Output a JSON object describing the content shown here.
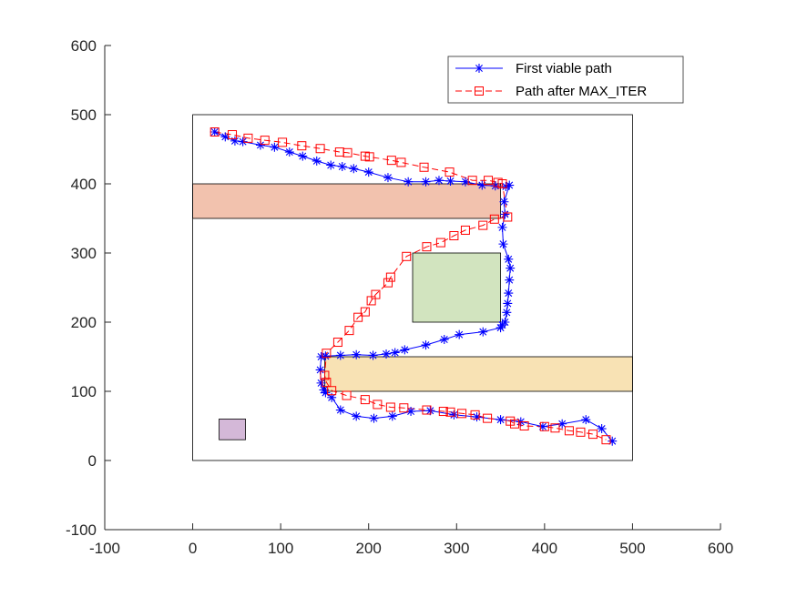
{
  "chart_data": {
    "type": "line",
    "title": "",
    "xlabel": "",
    "ylabel": "",
    "xlim": [
      -100,
      600
    ],
    "ylim": [
      -100,
      600
    ],
    "xticks": [
      "-100",
      "0",
      "100",
      "200",
      "300",
      "400",
      "500",
      "600"
    ],
    "yticks": [
      "-100",
      "0",
      "100",
      "200",
      "300",
      "400",
      "500",
      "600"
    ],
    "grid": false,
    "legend_position": "top-right",
    "boundary": {
      "x": [
        0,
        500
      ],
      "y": [
        0,
        500
      ],
      "color": "#000000"
    },
    "obstacles": [
      {
        "x": [
          0,
          350
        ],
        "y": [
          350,
          400
        ],
        "color": "#f2c2ae"
      },
      {
        "x": [
          250,
          350
        ],
        "y": [
          200,
          300
        ],
        "color": "#d2e4bf"
      },
      {
        "x": [
          150,
          500
        ],
        "y": [
          100,
          150
        ],
        "color": "#f8e2b4"
      },
      {
        "x": [
          30,
          60
        ],
        "y": [
          30,
          60
        ],
        "color": "#d4b8d8"
      }
    ],
    "series": [
      {
        "name": "First viable path",
        "color": "#0000ff",
        "marker": "asterisk",
        "line_style": "solid",
        "x": [
          25,
          37,
          48,
          57,
          77,
          93,
          110,
          125,
          141,
          157,
          170,
          183,
          200,
          222,
          245,
          265,
          280,
          293,
          310,
          329,
          344,
          356,
          360,
          354,
          355,
          352,
          353,
          359,
          361,
          360,
          359,
          358,
          357,
          355,
          352,
          350,
          330,
          303,
          286,
          265,
          241,
          230,
          220,
          205,
          186,
          168,
          151,
          146,
          145,
          146,
          149,
          151,
          158,
          168,
          186,
          206,
          227,
          248,
          270,
          297,
          323,
          350,
          373,
          398,
          420,
          447,
          465,
          477
        ],
        "y": [
          475,
          468,
          462,
          461,
          456,
          453,
          446,
          440,
          433,
          427,
          425,
          422,
          417,
          409,
          403,
          403,
          405,
          404,
          403,
          398,
          397,
          396,
          398,
          374,
          356,
          337,
          313,
          291,
          278,
          261,
          242,
          227,
          214,
          200,
          196,
          192,
          186,
          182,
          175,
          167,
          160,
          156,
          154,
          152,
          153,
          152,
          151,
          150,
          131,
          112,
          102,
          98,
          91,
          73,
          64,
          61,
          64,
          71,
          72,
          66,
          63,
          59,
          56,
          49,
          53,
          59,
          46,
          28
        ]
      },
      {
        "name": "Path after MAX_ITER",
        "color": "#ff0000",
        "marker": "square",
        "line_style": "dashed",
        "x": [
          25,
          45,
          63,
          82,
          102,
          124,
          145,
          167,
          176,
          196,
          201,
          226,
          237,
          263,
          292,
          318,
          336,
          347,
          352,
          358,
          343,
          330,
          310,
          297,
          282,
          266,
          243,
          225,
          222,
          208,
          203,
          196,
          188,
          178,
          165,
          152,
          150,
          152,
          158,
          175,
          196,
          210,
          225,
          240,
          266,
          285,
          293,
          306,
          321,
          335,
          361,
          366,
          377,
          400,
          412,
          428,
          441,
          455,
          470
        ],
        "y": [
          475,
          471,
          466,
          463,
          460,
          455,
          451,
          446,
          445,
          440,
          439,
          434,
          431,
          424,
          417,
          405,
          405,
          402,
          400,
          352,
          349,
          340,
          333,
          325,
          315,
          309,
          295,
          265,
          257,
          240,
          231,
          215,
          207,
          188,
          171,
          155,
          123,
          113,
          101,
          94,
          88,
          81,
          77,
          76,
          73,
          71,
          70,
          68,
          66,
          61,
          57,
          53,
          50,
          49,
          47,
          43,
          41,
          38,
          30
        ]
      }
    ]
  }
}
